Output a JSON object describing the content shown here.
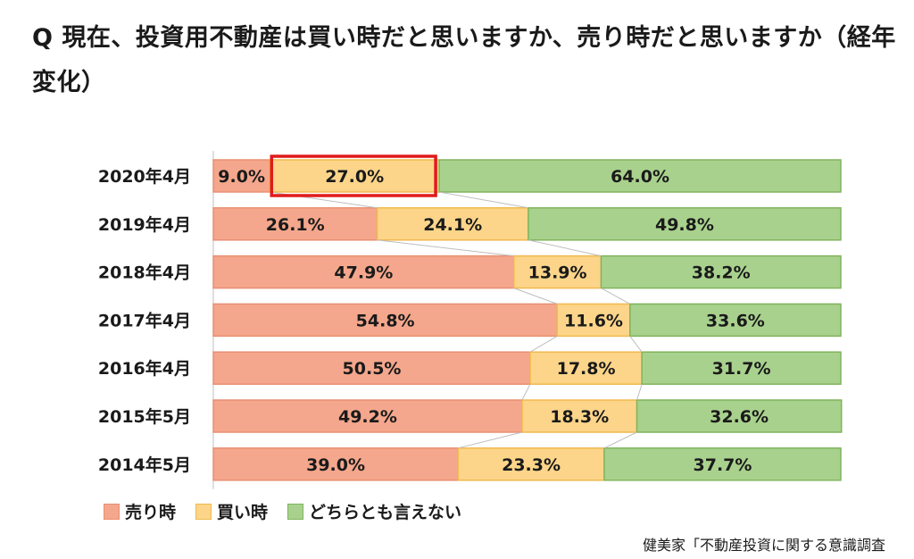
{
  "title": "Q 現在、投資用不動産は買い時だと思いますか、売り時だと思いますか（経年変化）",
  "source": "健美家「不動産投資に関する意識調査",
  "colors": {
    "sell": "#f4a78c",
    "sell_border": "#e98f72",
    "buy": "#fcd58a",
    "buy_border": "#f0b94c",
    "neutral": "#a9d18e",
    "neutral_border": "#7fb45c",
    "highlight": "#e01b1b"
  },
  "chart_data": {
    "type": "bar",
    "stacked": true,
    "orientation": "horizontal",
    "categories": [
      "2020年4月",
      "2019年4月",
      "2018年4月",
      "2017年4月",
      "2016年4月",
      "2015年5月",
      "2014年5月"
    ],
    "series": [
      {
        "name": "売り時",
        "values": [
          9.0,
          26.1,
          47.9,
          54.8,
          50.5,
          49.2,
          39.0
        ]
      },
      {
        "name": "買い時",
        "values": [
          27.0,
          24.1,
          13.9,
          11.6,
          17.8,
          18.3,
          23.3
        ]
      },
      {
        "name": "どちらとも言えない",
        "values": [
          64.0,
          49.8,
          38.2,
          33.6,
          31.7,
          32.6,
          37.7
        ]
      }
    ],
    "labels": [
      [
        "9.0%",
        "27.0%",
        "64.0%"
      ],
      [
        "26.1%",
        "24.1%",
        "49.8%"
      ],
      [
        "47.9%",
        "13.9%",
        "38.2%"
      ],
      [
        "54.8%",
        "11.6%",
        "33.6%"
      ],
      [
        "50.5%",
        "17.8%",
        "31.7%"
      ],
      [
        "49.2%",
        "18.3%",
        "32.6%"
      ],
      [
        "39.0%",
        "23.3%",
        "37.7%"
      ]
    ],
    "xlim": [
      0,
      100
    ],
    "legend_position": "bottom-left",
    "highlight": {
      "category": "2020年4月",
      "series": "買い時"
    }
  }
}
